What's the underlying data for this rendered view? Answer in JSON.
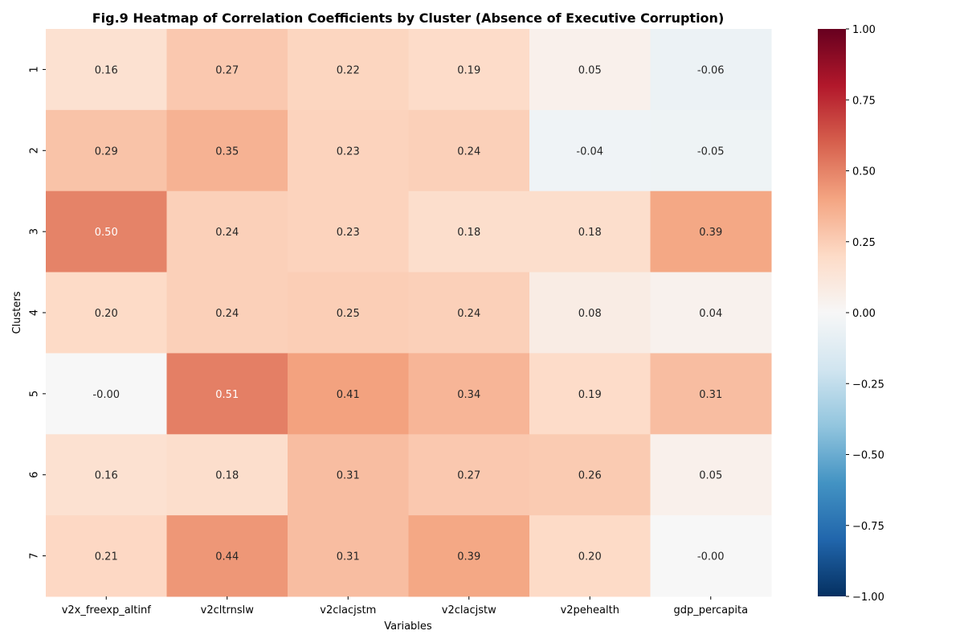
{
  "chart_data": {
    "type": "heatmap",
    "title": "Fig.9 Heatmap of Correlation Coefficients by Cluster (Absence of Executive Corruption)",
    "xlabel": "Variables",
    "ylabel": "Clusters",
    "x_categories": [
      "v2x_freexp_altinf",
      "v2cltrnslw",
      "v2clacjstm",
      "v2clacjstw",
      "v2pehealth",
      "gdp_percapita"
    ],
    "y_categories": [
      "1",
      "2",
      "3",
      "4",
      "5",
      "6",
      "7"
    ],
    "values": [
      [
        0.16,
        0.27,
        0.22,
        0.19,
        0.05,
        -0.06
      ],
      [
        0.29,
        0.35,
        0.23,
        0.24,
        -0.04,
        -0.05
      ],
      [
        0.5,
        0.24,
        0.23,
        0.18,
        0.18,
        0.39
      ],
      [
        0.2,
        0.24,
        0.25,
        0.24,
        0.08,
        0.04
      ],
      [
        -0.0,
        0.51,
        0.41,
        0.34,
        0.19,
        0.31
      ],
      [
        0.16,
        0.18,
        0.31,
        0.27,
        0.26,
        0.05
      ],
      [
        0.21,
        0.44,
        0.31,
        0.39,
        0.2,
        -0.0
      ]
    ],
    "value_labels": [
      [
        "0.16",
        "0.27",
        "0.22",
        "0.19",
        "0.05",
        "-0.06"
      ],
      [
        "0.29",
        "0.35",
        "0.23",
        "0.24",
        "-0.04",
        "-0.05"
      ],
      [
        "0.50",
        "0.24",
        "0.23",
        "0.18",
        "0.18",
        "0.39"
      ],
      [
        "0.20",
        "0.24",
        "0.25",
        "0.24",
        "0.08",
        "0.04"
      ],
      [
        "-0.00",
        "0.51",
        "0.41",
        "0.34",
        "0.19",
        "0.31"
      ],
      [
        "0.16",
        "0.18",
        "0.31",
        "0.27",
        "0.26",
        "0.05"
      ],
      [
        "0.21",
        "0.44",
        "0.31",
        "0.39",
        "0.20",
        "-0.00"
      ]
    ],
    "colormap": "RdBu_r",
    "vmin": -1.0,
    "vmax": 1.0,
    "colorbar": {
      "ticks": [
        1.0,
        0.75,
        0.5,
        0.25,
        0.0,
        -0.25,
        -0.5,
        -0.75,
        -1.0
      ],
      "tick_labels": [
        "1.00",
        "0.75",
        "0.50",
        "0.25",
        "0.00",
        "−0.25",
        "−0.50",
        "−0.75",
        "−1.00"
      ]
    },
    "grid": false,
    "legend": "colorbar-right"
  }
}
